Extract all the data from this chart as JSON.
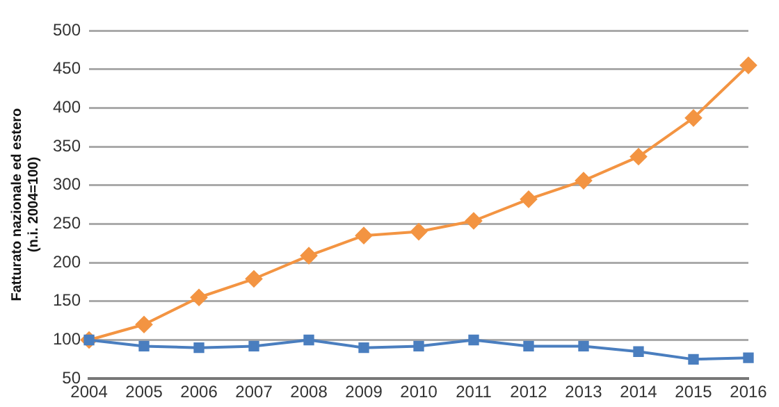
{
  "chart_data": {
    "type": "line",
    "ylabel": "Fatturato nazionale ed estero\n(n.i. 2004=100)",
    "categories": [
      "2004",
      "2005",
      "2006",
      "2007",
      "2008",
      "2009",
      "2010",
      "2011",
      "2012",
      "2013",
      "2014",
      "2015",
      "2016"
    ],
    "series": [
      {
        "color": "#f39442",
        "marker": "diamond",
        "values": [
          100,
          120,
          155,
          179,
          209,
          235,
          240,
          254,
          282,
          306,
          337,
          387,
          455
        ]
      },
      {
        "color": "#4a7ebf",
        "marker": "square",
        "values": [
          100,
          92,
          90,
          92,
          100,
          90,
          92,
          100,
          92,
          92,
          85,
          75,
          77
        ]
      }
    ],
    "ylim": [
      50,
      500
    ],
    "yticks": [
      50,
      100,
      150,
      200,
      250,
      300,
      350,
      400,
      450,
      500
    ],
    "grid": "y",
    "legend": false
  }
}
